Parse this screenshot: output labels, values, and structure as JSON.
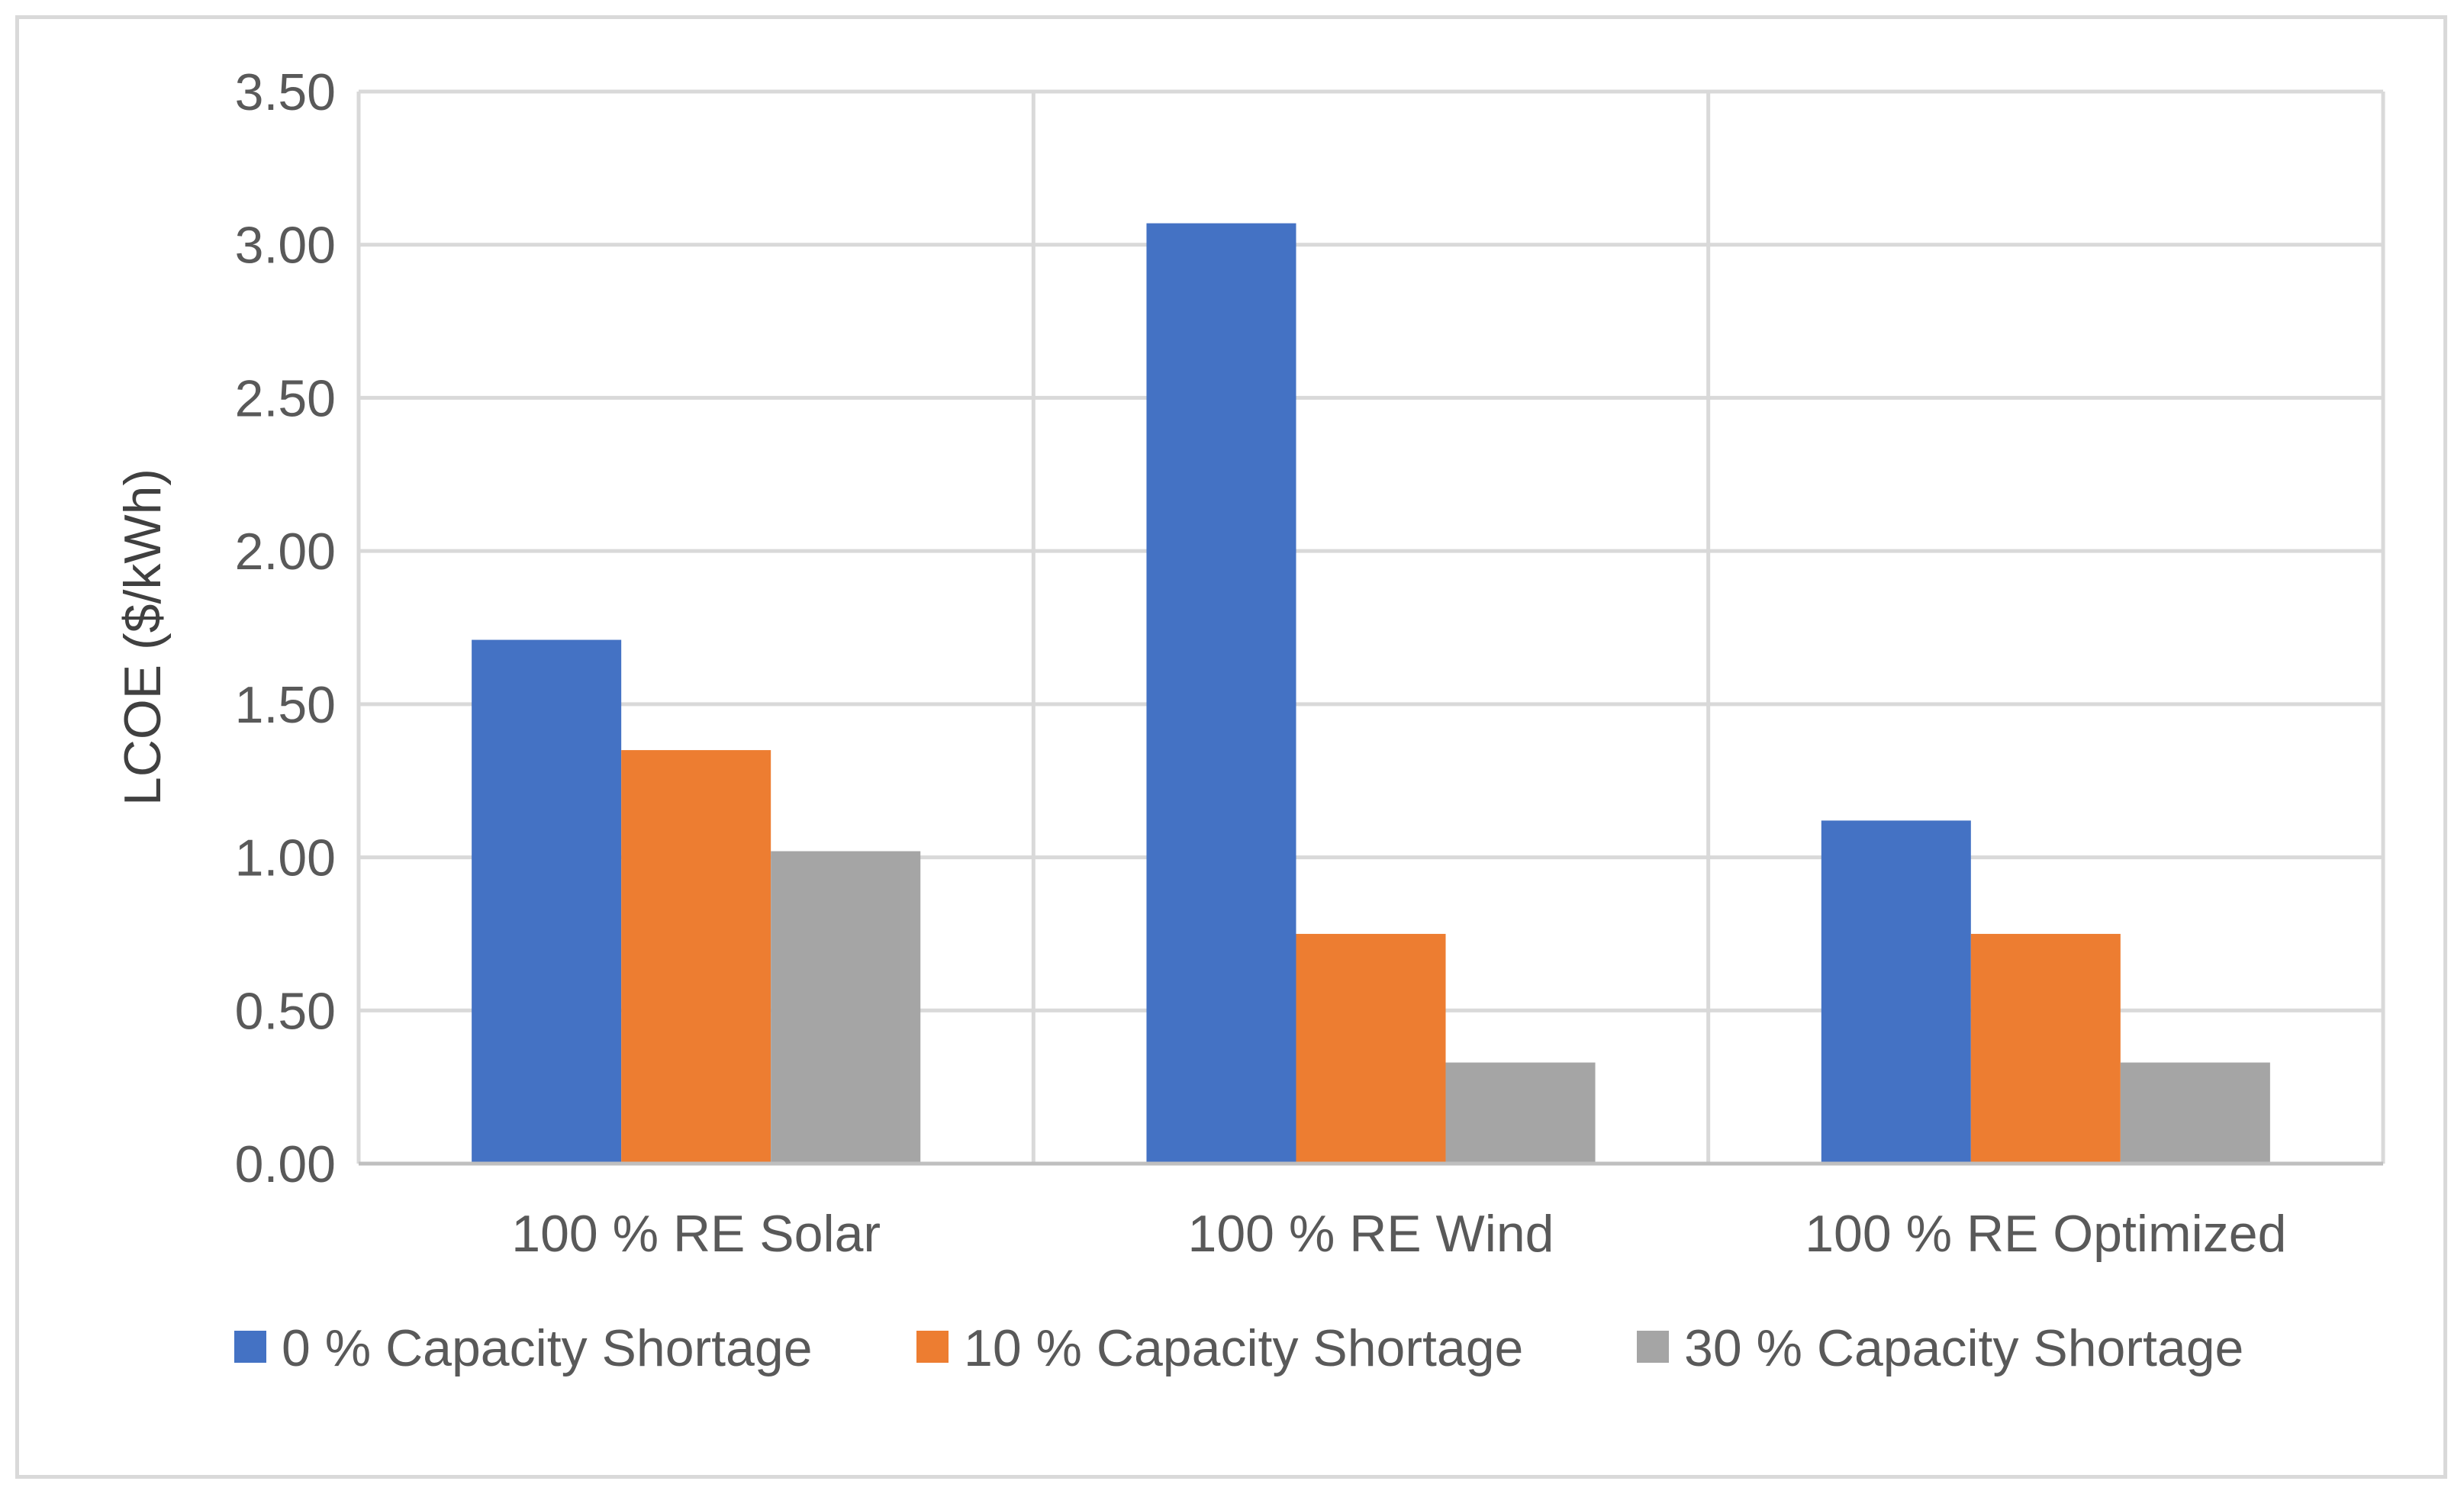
{
  "chart_data": {
    "type": "bar",
    "title": "",
    "xlabel": "",
    "ylabel": "LCOE ($/kWh)",
    "ylim": [
      0,
      3.5
    ],
    "yticks": [
      "0.00",
      "0.50",
      "1.00",
      "1.50",
      "2.00",
      "2.50",
      "3.00",
      "3.50"
    ],
    "grid": true,
    "legend_position": "bottom",
    "categories": [
      "100 % RE Solar",
      "100 % RE Wind",
      "100 % RE Optimized"
    ],
    "series": [
      {
        "name": "0 % Capacity Shortage",
        "color": "#4472c4",
        "values": [
          1.71,
          3.07,
          1.12
        ]
      },
      {
        "name": "10 % Capacity Shortage",
        "color": "#ed7d31",
        "values": [
          1.35,
          0.75,
          0.75
        ]
      },
      {
        "name": "30 % Capacity Shortage",
        "color": "#a5a5a5",
        "values": [
          1.02,
          0.33,
          0.33
        ]
      }
    ]
  }
}
